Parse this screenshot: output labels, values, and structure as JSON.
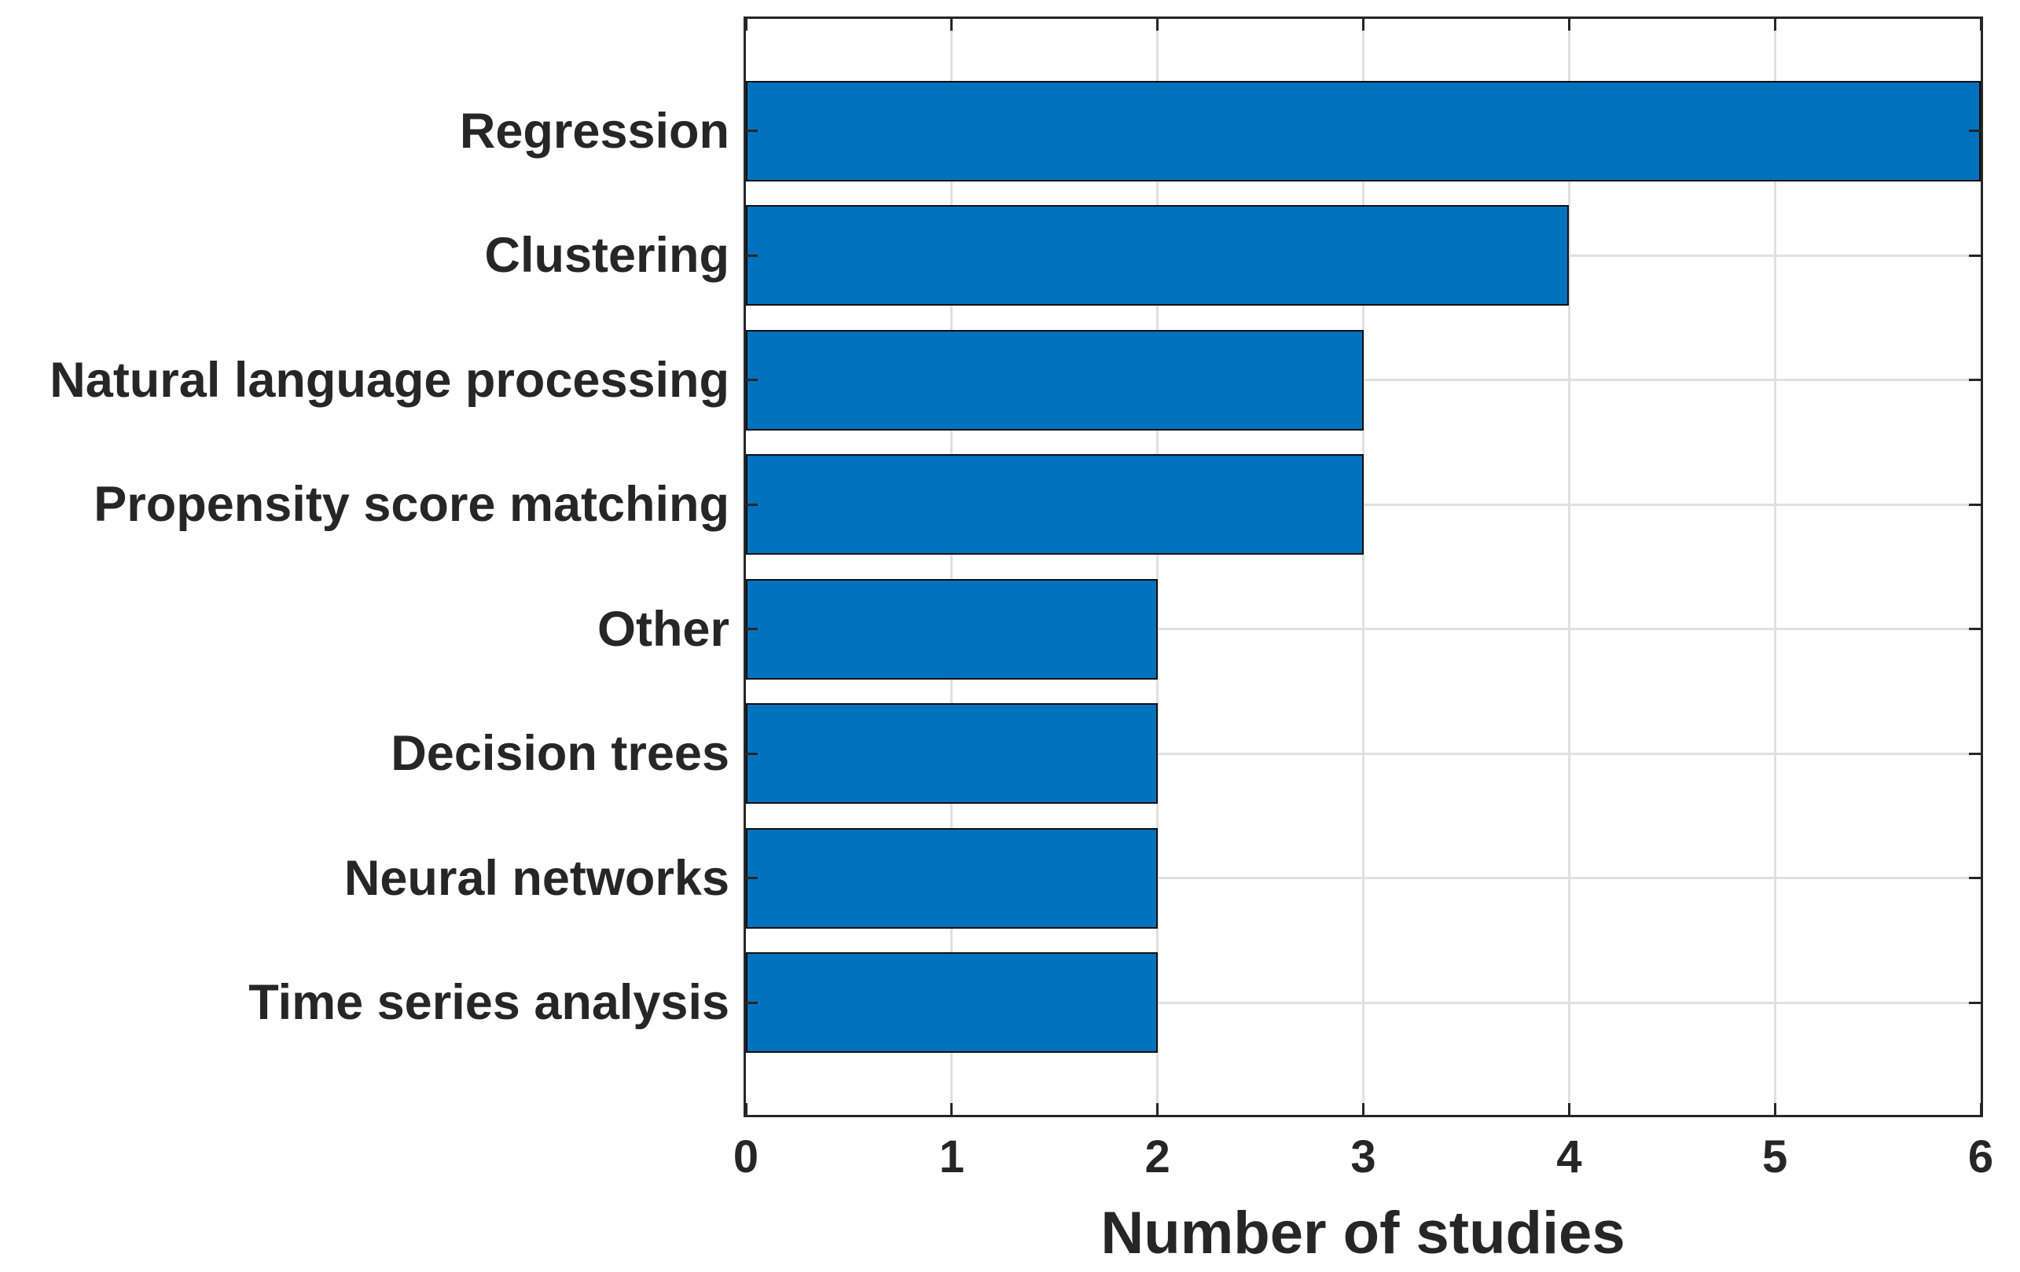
{
  "chart_data": {
    "type": "bar",
    "orientation": "horizontal",
    "title": "",
    "xlabel": "Number of studies",
    "ylabel": "",
    "categories": [
      "Regression",
      "Clustering",
      "Natural language processing",
      "Propensity score matching",
      "Other",
      "Decision trees",
      "Neural networks",
      "Time series analysis"
    ],
    "values": [
      6,
      4,
      3,
      3,
      2,
      2,
      2,
      2
    ],
    "xlim": [
      0,
      6
    ],
    "xticks": [
      0,
      1,
      2,
      3,
      4,
      5,
      6
    ],
    "xtick_labels": [
      "0",
      "1",
      "2",
      "3",
      "4",
      "5",
      "6"
    ],
    "grid": "both",
    "legend": "none",
    "colors": {
      "bar_fill": "#0072BD",
      "bar_edge": "#0f0f0f",
      "axis": "#262626",
      "grid": "#e0e0e0",
      "text": "#262626",
      "background": "#ffffff"
    }
  }
}
